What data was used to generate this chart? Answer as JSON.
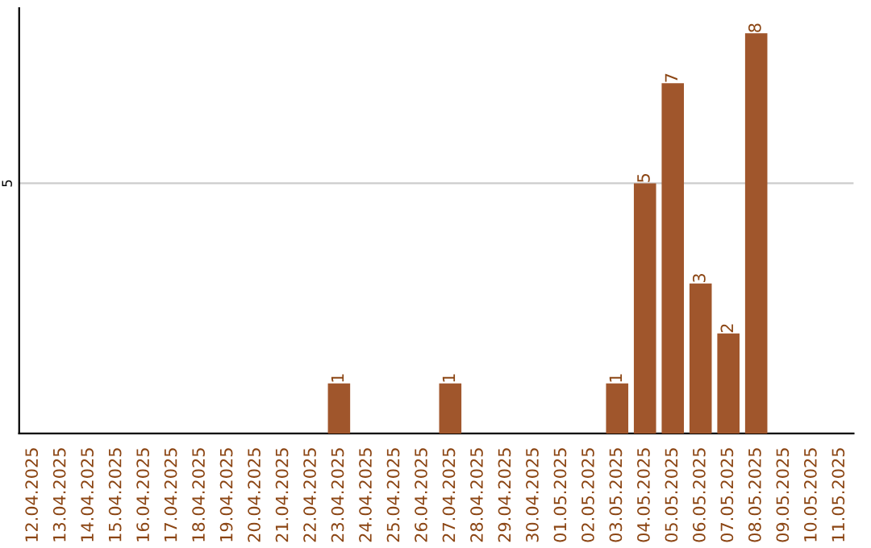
{
  "chart_data": {
    "type": "bar",
    "categories": [
      "12.04.2025",
      "13.04.2025",
      "14.04.2025",
      "15.04.2025",
      "16.04.2025",
      "17.04.2025",
      "18.04.2025",
      "19.04.2025",
      "20.04.2025",
      "21.04.2025",
      "22.04.2025",
      "23.04.2025",
      "24.04.2025",
      "25.04.2025",
      "26.04.2025",
      "27.04.2025",
      "28.04.2025",
      "29.04.2025",
      "30.04.2025",
      "01.05.2025",
      "02.05.2025",
      "03.05.2025",
      "04.05.2025",
      "05.05.2025",
      "06.05.2025",
      "07.05.2025",
      "08.05.2025",
      "09.05.2025",
      "10.05.2025",
      "11.05.2025"
    ],
    "values": [
      0,
      0,
      0,
      0,
      0,
      0,
      0,
      0,
      0,
      0,
      0,
      1,
      0,
      0,
      0,
      1,
      0,
      0,
      0,
      0,
      0,
      1,
      5,
      7,
      3,
      2,
      8,
      0,
      0,
      0
    ],
    "color": "#a0562c",
    "value_labels": [
      null,
      null,
      null,
      null,
      null,
      null,
      null,
      null,
      null,
      null,
      null,
      "1",
      null,
      null,
      null,
      "1",
      null,
      null,
      null,
      null,
      null,
      "1",
      "5",
      "7",
      "3",
      "2",
      "8",
      null,
      null,
      null
    ],
    "ylim": [
      0,
      8.5
    ],
    "yticks": [
      5
    ],
    "grid": "y"
  }
}
